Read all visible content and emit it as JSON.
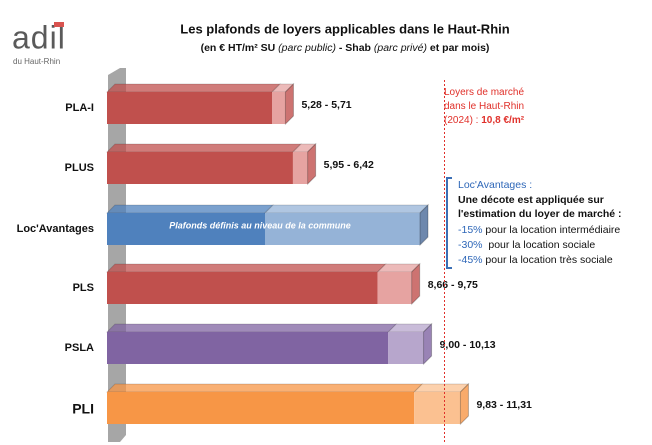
{
  "chart_data": {
    "type": "range-bar",
    "logo": "adil",
    "logo_sub": "du Haut-Rhin",
    "title": "Les plafonds de loyers applicables dans le Haut-Rhin",
    "subtitle_parts": [
      "(en € HT/m² SU ",
      "(parc public)",
      " - Shab ",
      "(parc privé)",
      " et par mois)"
    ],
    "categories": [
      "PLA-I",
      "PLUS",
      "Loc'Avantages",
      "PLS",
      "PSLA",
      "PLI"
    ],
    "low": [
      5.28,
      5.95,
      null,
      8.66,
      9.0,
      9.83
    ],
    "high": [
      5.71,
      6.42,
      null,
      9.75,
      10.13,
      11.31
    ],
    "value_labels": [
      "5,28 - 5,71",
      "5,95 - 6,42",
      null,
      "8,66 - 9,75",
      "9,00 - 10,13",
      "9,83 - 11,31"
    ],
    "colors": [
      "#c0504d",
      "#c0504d",
      "#4f81bd",
      "#c0504d",
      "#8064a2",
      "#f79646"
    ],
    "light_colors": [
      "#e6a3a1",
      "#e6a3a1",
      "#95b3d7",
      "#e6a3a1",
      "#b7a6cc",
      "#fbc191"
    ],
    "band_text": "Plafonds définis au niveau de la commune",
    "xlim": [
      0,
      12
    ],
    "market_line": {
      "value": 10.8,
      "label": [
        "Loyers de marché",
        "dans le Haut-Rhin",
        "(2024) : "
      ],
      "value_label": "10,8 €/m²",
      "color": "#e0302a"
    },
    "box": {
      "title": "Loc'Avantages :",
      "lines": [
        "Une décote est appliquée sur",
        "l'estimation du loyer de marché :"
      ],
      "items": [
        {
          "rate": "-15%",
          "text": " pour la location intermédiaire"
        },
        {
          "rate": "-30%",
          "text": "  pour la location sociale"
        },
        {
          "rate": "-45%",
          "text": " pour la location très sociale"
        }
      ]
    }
  }
}
